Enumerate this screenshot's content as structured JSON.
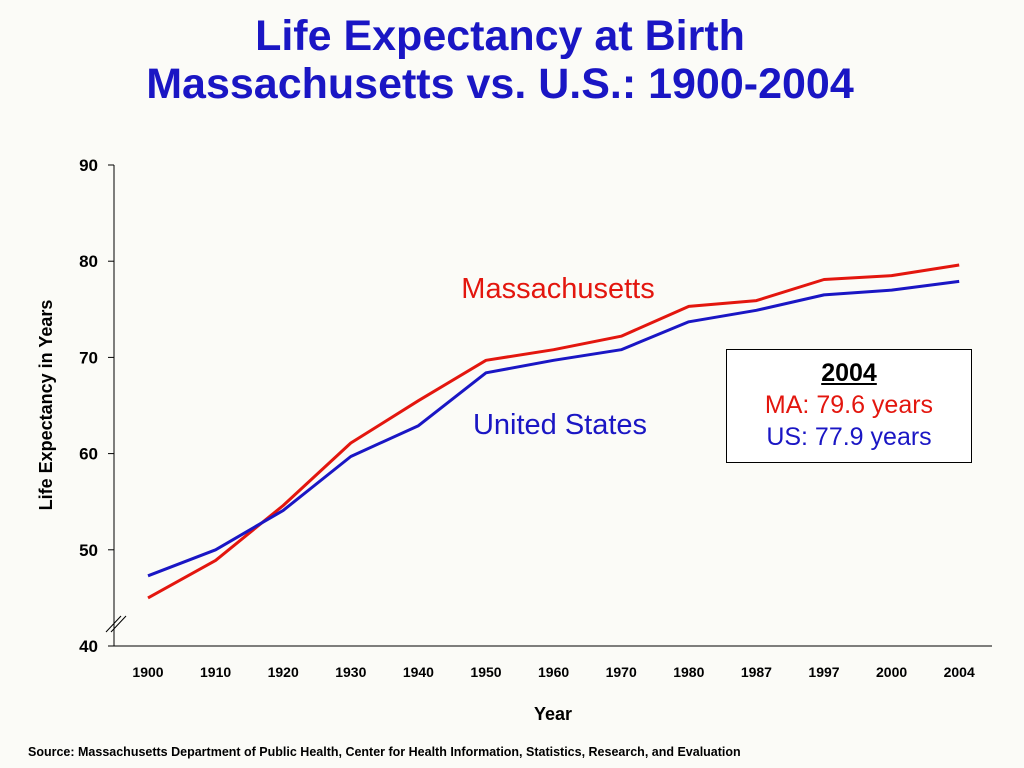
{
  "header": {
    "title_line1": "Life Expectancy at Birth",
    "title_line2": "Massachusetts vs. U.S.: 1900-2004"
  },
  "chart_data": {
    "type": "line",
    "title": "Life Expectancy at Birth Massachusetts vs. U.S.: 1900-2004",
    "xlabel": "Year",
    "ylabel": "Life Expectancy in Years",
    "categories": [
      "1900",
      "1910",
      "1920",
      "1930",
      "1940",
      "1950",
      "1960",
      "1970",
      "1980",
      "1987",
      "1997",
      "2000",
      "2004"
    ],
    "yticks": [
      40,
      50,
      60,
      70,
      80,
      90
    ],
    "ylim": [
      40,
      90
    ],
    "axis_break": true,
    "grid": false,
    "series": [
      {
        "name": "Massachusetts",
        "color": "#e3160e",
        "values": [
          45.0,
          48.9,
          54.6,
          61.1,
          65.5,
          69.7,
          70.8,
          72.2,
          75.3,
          75.9,
          78.1,
          78.5,
          79.6
        ]
      },
      {
        "name": "United States",
        "color": "#1a16c4",
        "values": [
          47.3,
          50.0,
          54.1,
          59.7,
          62.9,
          68.4,
          69.7,
          70.8,
          73.7,
          74.9,
          76.5,
          77.0,
          77.9
        ]
      }
    ]
  },
  "legend_box": {
    "year": "2004",
    "ma_text": "MA: 79.6 years",
    "us_text": "US: 77.9 years",
    "ma_color": "#e3160e",
    "us_color": "#1a16c4"
  },
  "footer": {
    "source": "Source:  Massachusetts Department of Public Health, Center for Health Information, Statistics, Research, and Evaluation"
  }
}
